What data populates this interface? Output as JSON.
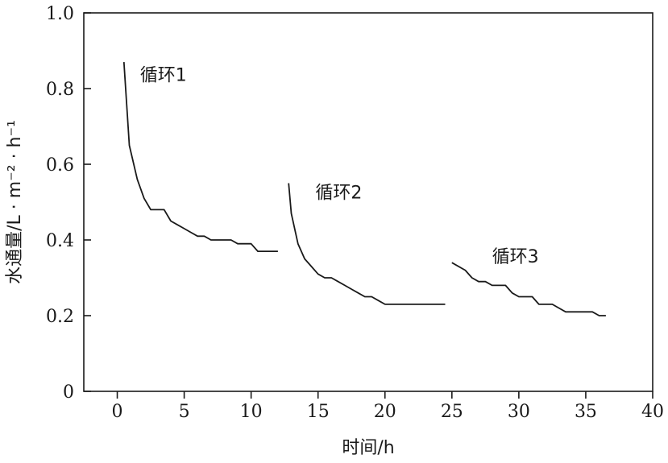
{
  "chart_data": {
    "type": "line",
    "xlabel": "时间/h",
    "ylabel": "水通量/L · m⁻² · h⁻¹",
    "xlim": [
      -2.5,
      40
    ],
    "ylim": [
      0,
      1.0
    ],
    "xticks": [
      0,
      5,
      10,
      15,
      20,
      25,
      30,
      35,
      40
    ],
    "yticks": [
      0,
      0.2,
      0.4,
      0.6,
      0.8,
      1.0
    ],
    "xtick_labels": [
      "0",
      "5",
      "10",
      "15",
      "20",
      "25",
      "30",
      "35",
      "40"
    ],
    "ytick_labels": [
      "0",
      "0.2",
      "0.4",
      "0.6",
      "0.8",
      "1.0"
    ],
    "grid": false,
    "series": [
      {
        "name": "循环1",
        "x": [
          0.5,
          0.9,
          1.5,
          2.0,
          2.5,
          3.0,
          3.5,
          4.0,
          4.5,
          5.0,
          5.5,
          6.0,
          6.5,
          7.0,
          7.5,
          8.0,
          8.5,
          9.0,
          9.5,
          10.0,
          10.5,
          11.0,
          11.5,
          12.0
        ],
        "y": [
          0.87,
          0.65,
          0.56,
          0.51,
          0.48,
          0.48,
          0.48,
          0.45,
          0.44,
          0.43,
          0.42,
          0.41,
          0.41,
          0.4,
          0.4,
          0.4,
          0.4,
          0.39,
          0.39,
          0.39,
          0.37,
          0.37,
          0.37,
          0.37
        ],
        "label_pos": [
          1.7,
          0.82
        ]
      },
      {
        "name": "循环2",
        "x": [
          12.8,
          13.0,
          13.5,
          14.0,
          14.5,
          15.0,
          15.5,
          16.0,
          16.5,
          17.0,
          17.5,
          18.0,
          18.5,
          19.0,
          19.5,
          20.0,
          21.0,
          22.0,
          23.0,
          24.5
        ],
        "y": [
          0.55,
          0.47,
          0.39,
          0.35,
          0.33,
          0.31,
          0.3,
          0.3,
          0.29,
          0.28,
          0.27,
          0.26,
          0.25,
          0.25,
          0.24,
          0.23,
          0.23,
          0.23,
          0.23,
          0.23
        ],
        "label_pos": [
          14.8,
          0.51
        ]
      },
      {
        "name": "循环3",
        "x": [
          25.0,
          26.0,
          26.5,
          27.0,
          27.5,
          28.0,
          28.5,
          29.0,
          29.5,
          30.0,
          30.5,
          31.0,
          31.5,
          32.0,
          32.5,
          33.0,
          33.5,
          34.0,
          34.5,
          35.0,
          35.5,
          36.0,
          36.5
        ],
        "y": [
          0.34,
          0.32,
          0.3,
          0.29,
          0.29,
          0.28,
          0.28,
          0.28,
          0.26,
          0.25,
          0.25,
          0.25,
          0.23,
          0.23,
          0.23,
          0.22,
          0.21,
          0.21,
          0.21,
          0.21,
          0.21,
          0.2,
          0.2
        ],
        "label_pos": [
          28.0,
          0.34
        ]
      }
    ]
  }
}
